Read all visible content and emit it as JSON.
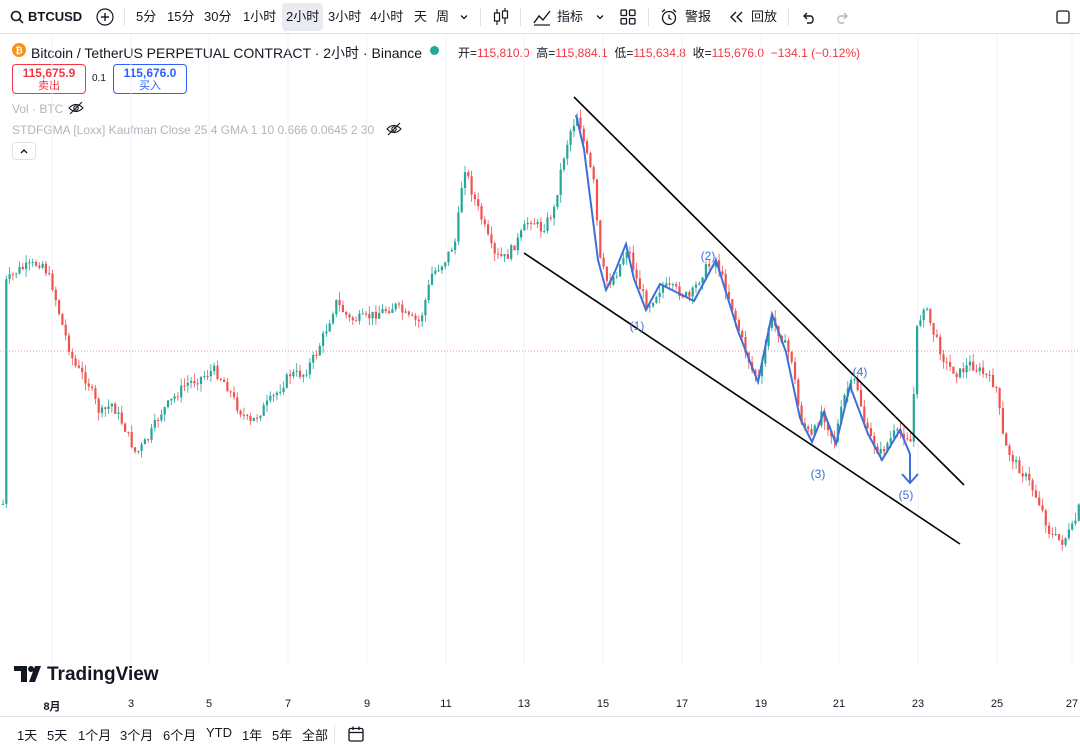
{
  "toolbar": {
    "symbol": "BTCUSD",
    "intervals": [
      "5分",
      "15分",
      "30分",
      "1小时",
      "2小时",
      "3小时",
      "4小时",
      "天",
      "周"
    ],
    "selected_interval": "2小时",
    "indicators_label": "指标",
    "alert_label": "警报",
    "replay_label": "回放"
  },
  "legend": {
    "icon": "bitcoin-icon",
    "title": "Bitcoin / TetherUS PERPETUAL CONTRACT · 2小时 · Binance",
    "open_label": "开=",
    "open": "115,810.0",
    "high_label": "高=",
    "high": "115,884.1",
    "low_label": "低=",
    "low": "115,634.8",
    "close_label": "收=",
    "close": "115,676.0",
    "change": "−134.1 (−0.12%)",
    "sell_price": "115,675.9",
    "sell_label": "卖出",
    "spread": "0.1",
    "buy_price": "115,676.0",
    "buy_label": "买入",
    "vol_label": "Vol · BTC",
    "indicator_label": "STDFGMA [Loxx] Kaufman Close 25 4 GMA 1 10 0.666 0.0645 2 30"
  },
  "wave_labels": [
    "(1)",
    "(2)",
    "(3)",
    "(4)",
    "(5)"
  ],
  "x_axis_labels": [
    "8月",
    "3",
    "5",
    "7",
    "9",
    "11",
    "13",
    "15",
    "17",
    "19",
    "21",
    "23",
    "25",
    "27"
  ],
  "watermark": "TradingView",
  "bottom": {
    "ranges": [
      "1天",
      "5天",
      "1个月",
      "3个月",
      "6个月",
      "YTD",
      "1年",
      "5年",
      "全部"
    ]
  },
  "colors": {
    "up": "#26a69a",
    "down": "#ef5350",
    "wave": "#3d6fd9",
    "channel": "#000000",
    "accent_red": "#f23645",
    "accent_blue": "#2962ff"
  }
}
